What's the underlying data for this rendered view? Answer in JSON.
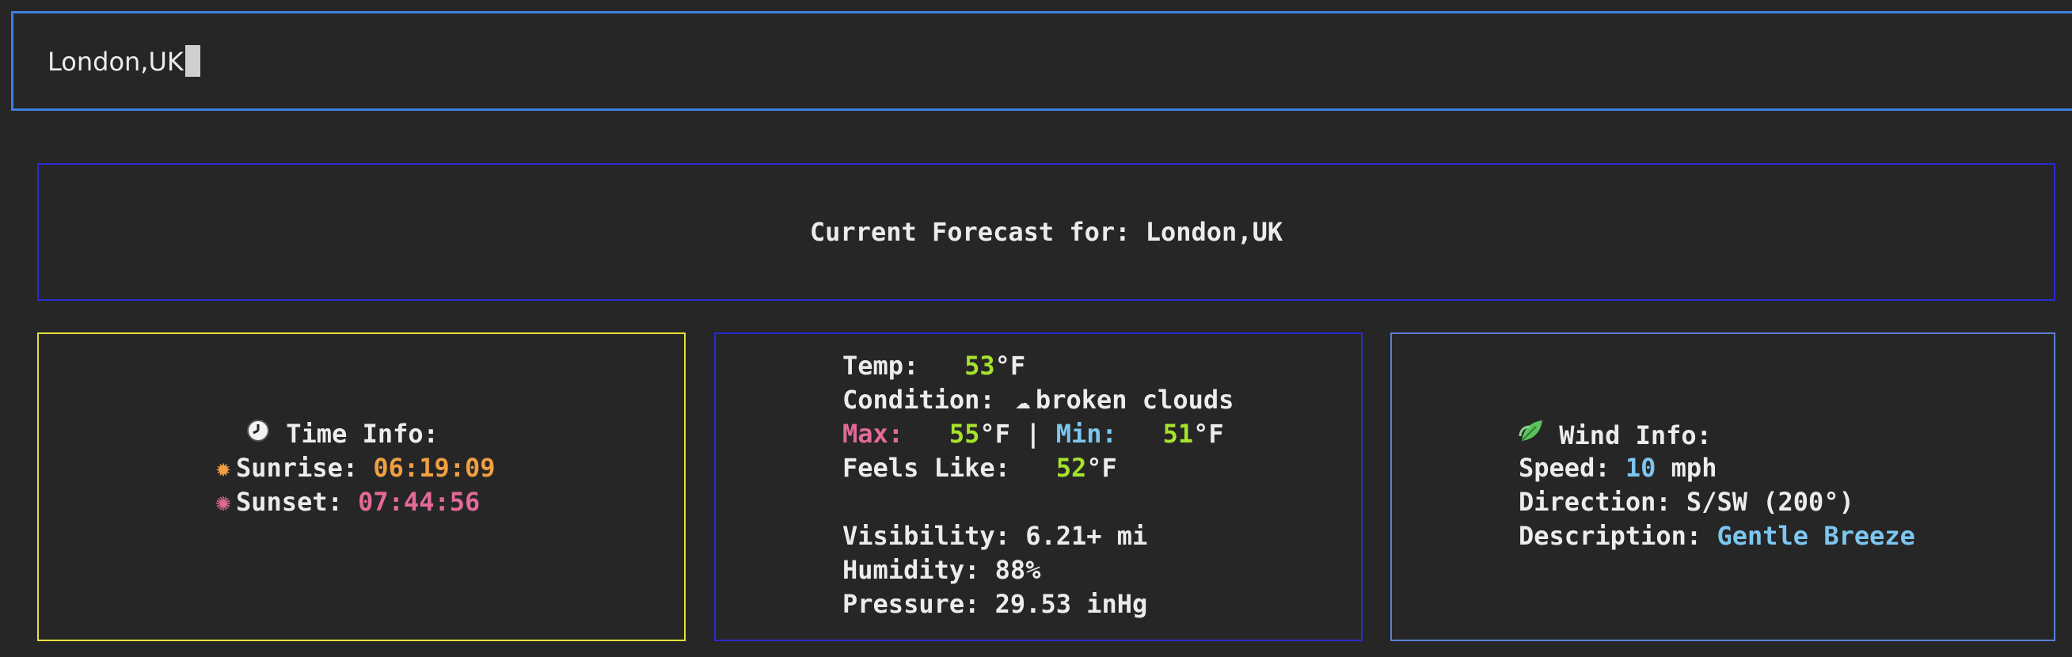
{
  "search": {
    "value": "London,UK"
  },
  "header": {
    "title": "Current Forecast for: London,UK"
  },
  "time_info": {
    "heading": "Time Info:",
    "sunrise_label": "Sunrise:",
    "sunrise_value": "06:19:09",
    "sunset_label": "Sunset:",
    "sunset_value": "07:44:56"
  },
  "forecast": {
    "temp_label": "Temp:",
    "temp_value": "53",
    "temp_unit": "°F",
    "condition_label": "Condition:",
    "condition_value": "broken clouds",
    "max_label": "Max:",
    "max_value": "55",
    "max_unit": "°F",
    "separator": "|",
    "min_label": "Min:",
    "min_value": "51",
    "min_unit": "°F",
    "feels_label": "Feels Like:",
    "feels_value": "52",
    "feels_unit": "°F",
    "visibility": "Visibility: 6.21+ mi",
    "humidity": "Humidity: 88%",
    "pressure": "Pressure: 29.53 inHg"
  },
  "wind": {
    "heading": "Wind Info:",
    "speed_label": "Speed:",
    "speed_value": "10",
    "speed_unit": "mph",
    "direction": "Direction: S/SW (200°)",
    "description_label": "Description:",
    "description_value": "Gentle Breeze"
  },
  "colors": {
    "search_border": "#3d7fe0",
    "panel_border": "#2a2ad4",
    "time_border": "#e8e03a",
    "wind_border": "#5c7fd6",
    "orange": "#f0a040",
    "pink": "#e36a98",
    "green": "#a6e22e",
    "blue": "#7cc6f0"
  },
  "icons": {
    "time": "clock-icon",
    "sunrise": "sun-icon",
    "sunset": "sunset-icon",
    "condition": "cloud-icon",
    "wind": "leaf-icon"
  }
}
